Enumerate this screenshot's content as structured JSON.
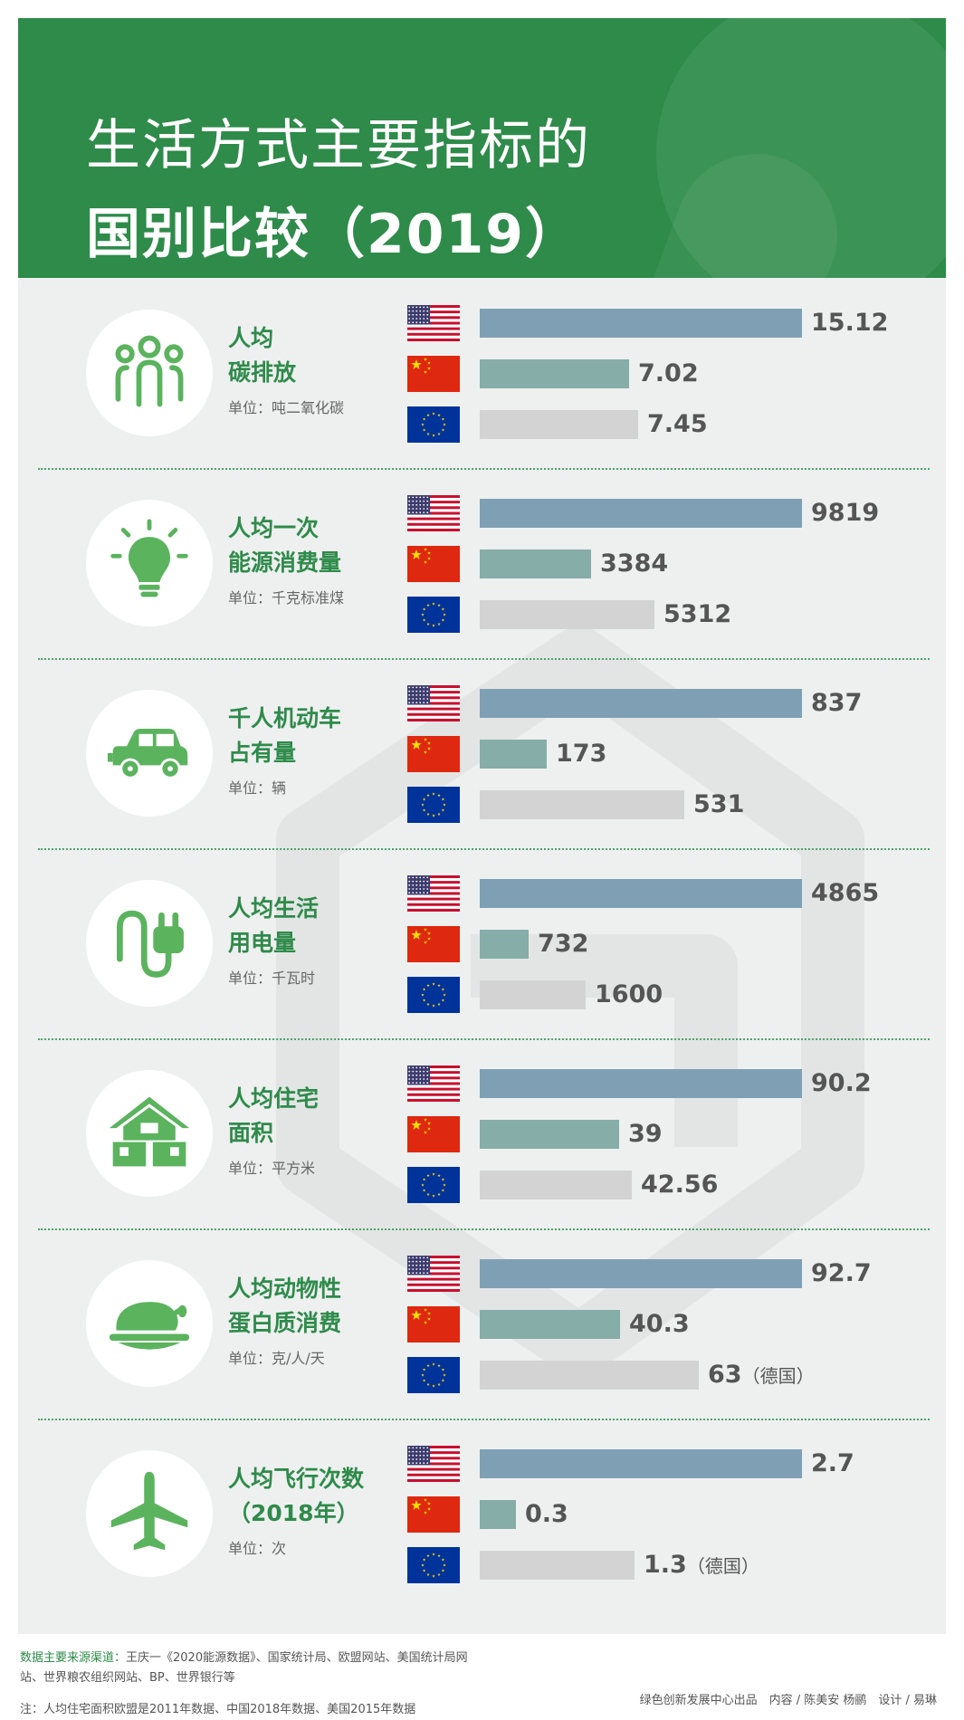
{
  "header": {
    "title_line1": "生活方式主要指标的",
    "title_line2": "国别比较（2019）"
  },
  "colors": {
    "header_green": "#2e8b4a",
    "label_green": "#2e8b4a",
    "us_bar": "#7fa0b4",
    "cn_bar": "#86ada8",
    "eu_bar": "#d3d3d3"
  },
  "chart_data": [
    {
      "type": "bar",
      "icon": "people-icon",
      "label_line1": "人均",
      "label_line2": "碳排放",
      "unit": "单位：吨二氧化碳",
      "categories": [
        "us-flag",
        "china-flag",
        "eu-flag"
      ],
      "values": [
        15.12,
        7.02,
        7.45
      ],
      "value_labels": [
        "15.12",
        "7.02",
        "7.45"
      ],
      "notes": [
        "",
        "",
        ""
      ],
      "xlim": [
        0,
        15.12
      ]
    },
    {
      "type": "bar",
      "icon": "lightbulb-icon",
      "label_line1": "人均一次",
      "label_line2": "能源消费量",
      "unit": "单位：千克标准煤",
      "categories": [
        "us-flag",
        "china-flag",
        "eu-flag"
      ],
      "values": [
        9819,
        3384,
        5312
      ],
      "value_labels": [
        "9819",
        "3384",
        "5312"
      ],
      "notes": [
        "",
        "",
        ""
      ],
      "xlim": [
        0,
        9819
      ]
    },
    {
      "type": "bar",
      "icon": "car-icon",
      "label_line1": "千人机动车",
      "label_line2": "占有量",
      "unit": "单位：辆",
      "categories": [
        "us-flag",
        "china-flag",
        "eu-flag"
      ],
      "values": [
        837,
        173,
        531
      ],
      "value_labels": [
        "837",
        "173",
        "531"
      ],
      "notes": [
        "",
        "",
        ""
      ],
      "xlim": [
        0,
        837
      ]
    },
    {
      "type": "bar",
      "icon": "plug-icon",
      "label_line1": "人均生活",
      "label_line2": "用电量",
      "unit": "单位：千瓦时",
      "categories": [
        "us-flag",
        "china-flag",
        "eu-flag"
      ],
      "values": [
        4865,
        732,
        1600
      ],
      "value_labels": [
        "4865",
        "732",
        "1600"
      ],
      "notes": [
        "",
        "",
        ""
      ],
      "xlim": [
        0,
        4865
      ]
    },
    {
      "type": "bar",
      "icon": "house-icon",
      "label_line1": "人均住宅",
      "label_line2": "面积",
      "unit": "单位：平方米",
      "categories": [
        "us-flag",
        "china-flag",
        "eu-flag"
      ],
      "values": [
        90.2,
        39,
        42.56
      ],
      "value_labels": [
        "90.2",
        "39",
        "42.56"
      ],
      "notes": [
        "",
        "",
        ""
      ],
      "xlim": [
        0,
        90.2
      ]
    },
    {
      "type": "bar",
      "icon": "roast-chicken-icon",
      "label_line1": "人均动物性",
      "label_line2": "蛋白质消费",
      "unit": "单位：克/人/天",
      "categories": [
        "us-flag",
        "china-flag",
        "eu-flag"
      ],
      "values": [
        92.7,
        40.3,
        63
      ],
      "value_labels": [
        "92.7",
        "40.3",
        "63"
      ],
      "notes": [
        "",
        "",
        "（德国）"
      ],
      "xlim": [
        0,
        92.7
      ]
    },
    {
      "type": "bar",
      "icon": "airplane-icon",
      "label_line1": "人均飞行次数",
      "label_line2": "（2018年）",
      "unit": "单位：次",
      "categories": [
        "us-flag",
        "china-flag",
        "eu-flag"
      ],
      "values": [
        2.7,
        0.3,
        1.3
      ],
      "value_labels": [
        "2.7",
        "0.3",
        "1.3"
      ],
      "notes": [
        "",
        "",
        "（德国）"
      ],
      "xlim": [
        0,
        2.7
      ]
    }
  ],
  "footer": {
    "source_label": "数据主要来源渠道：",
    "source_text": "王庆一《2020能源数据》、国家统计局、欧盟网站、美国统计局网站、世界粮农组织网站、BP、世界银行等",
    "credit": "绿色创新发展中心出品　内容 / 陈美安 杨鹂　设计 / 易琳",
    "note": "注：人均住宅面积欧盟是2011年数据、中国2018年数据、美国2015年数据"
  }
}
